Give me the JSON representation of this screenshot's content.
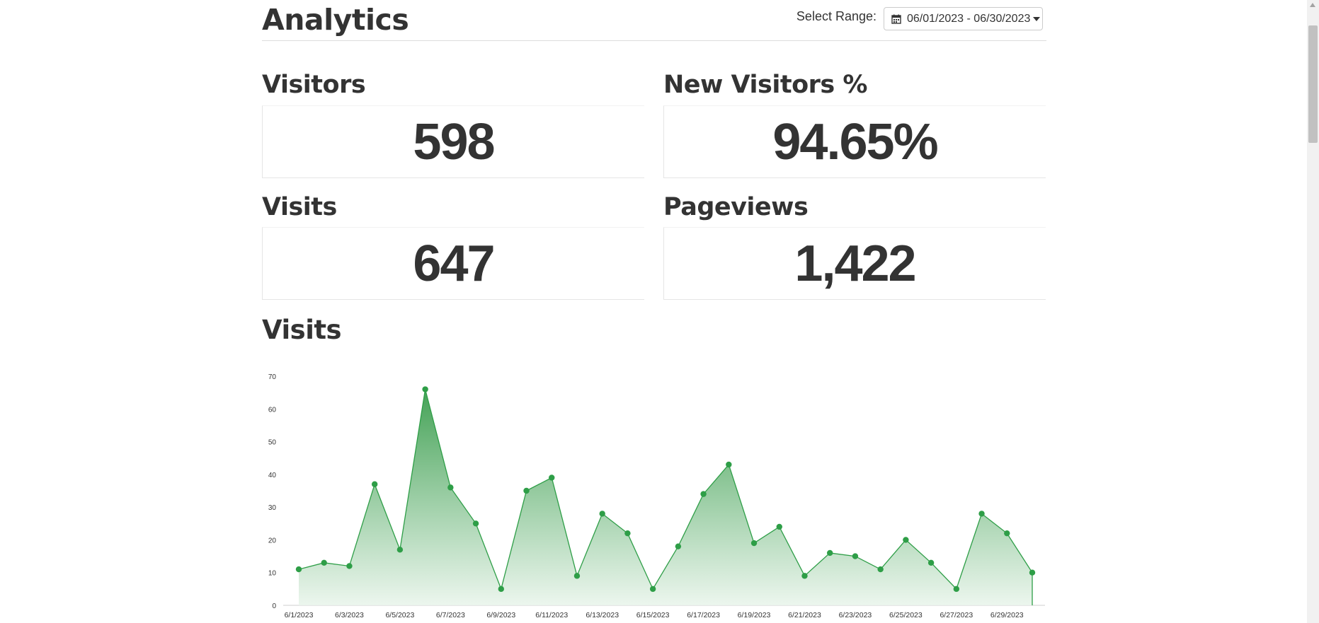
{
  "header": {
    "title": "Analytics",
    "range_label": "Select Range:",
    "range_value": "06/01/2023 - 06/30/2023",
    "range_icon": "calendar-icon"
  },
  "stats": {
    "visitors": {
      "label": "Visitors",
      "value": "598"
    },
    "new_visitors": {
      "label": "New Visitors %",
      "value": "94.65%"
    },
    "visits": {
      "label": "Visits",
      "value": "647"
    },
    "pageviews": {
      "label": "Pageviews",
      "value": "1,422"
    }
  },
  "chart_section": {
    "title": "Visits"
  },
  "colors": {
    "line": "#2e9e47",
    "fill_top": "#3a9d4d",
    "fill_bottom": "#eaf5ec",
    "text": "#333333"
  },
  "chart_data": {
    "type": "area",
    "x": [
      "6/1/2023",
      "6/2/2023",
      "6/3/2023",
      "6/4/2023",
      "6/5/2023",
      "6/6/2023",
      "6/7/2023",
      "6/8/2023",
      "6/9/2023",
      "6/10/2023",
      "6/11/2023",
      "6/12/2023",
      "6/13/2023",
      "6/14/2023",
      "6/15/2023",
      "6/16/2023",
      "6/17/2023",
      "6/18/2023",
      "6/19/2023",
      "6/20/2023",
      "6/21/2023",
      "6/22/2023",
      "6/23/2023",
      "6/24/2023",
      "6/25/2023",
      "6/26/2023",
      "6/27/2023",
      "6/28/2023",
      "6/29/2023",
      "6/30/2023"
    ],
    "tick_labels": [
      "6/1/2023",
      "6/3/2023",
      "6/5/2023",
      "6/7/2023",
      "6/9/2023",
      "6/11/2023",
      "6/13/2023",
      "6/15/2023",
      "6/17/2023",
      "6/19/2023",
      "6/21/2023",
      "6/23/2023",
      "6/25/2023",
      "6/27/2023",
      "6/29/2023"
    ],
    "series": [
      {
        "values": [
          11,
          13,
          12,
          37,
          17,
          66,
          36,
          25,
          5,
          35,
          39,
          9,
          28,
          22,
          5,
          18,
          34,
          43,
          19,
          24,
          9,
          16,
          15,
          11,
          20,
          13,
          5,
          28,
          22,
          10
        ]
      }
    ],
    "ylim": [
      0,
      70
    ],
    "yticks": [
      0,
      10,
      20,
      30,
      40,
      50,
      60,
      70
    ],
    "grid": false
  }
}
